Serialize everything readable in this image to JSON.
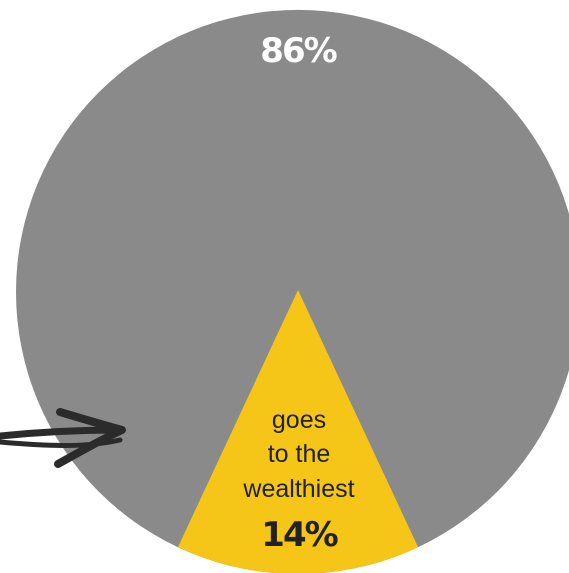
{
  "chart_data": {
    "type": "pie",
    "title": "",
    "slices": [
      {
        "label": "86%",
        "value": 86,
        "color": "#8a8a8a"
      },
      {
        "label": "14%",
        "value": 14,
        "color": "#f5c518",
        "annotation": [
          "goes",
          "to the",
          "wealthiest"
        ]
      }
    ]
  },
  "colors": {
    "background": "#ffffff",
    "label_light": "#ffffff",
    "label_dark": "#222222",
    "arrow": "#2b2b2b"
  }
}
